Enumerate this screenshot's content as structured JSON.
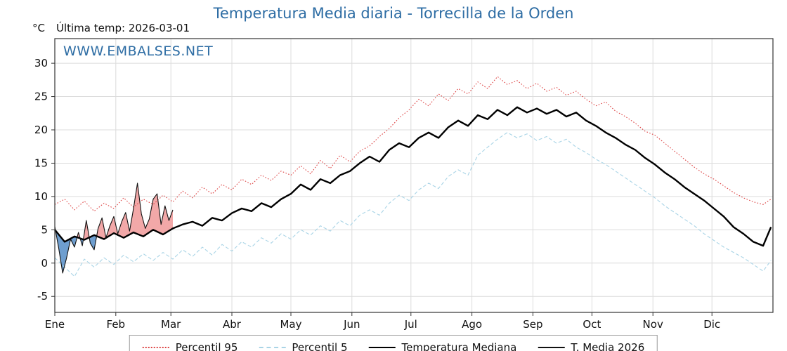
{
  "header": {
    "title": "Temperatura Media diaria - Torrecilla de la Orden",
    "unit_label": "°C",
    "last_temp_label": "Última temp: 2026-03-01",
    "watermark": "WWW.EMBALSES.NET"
  },
  "colors": {
    "title": "#2e6da4",
    "watermark": "#2e6da4",
    "grid": "#dcdcdc",
    "axis": "#333333",
    "p95": "#dd4444",
    "p5": "#a9d4e6",
    "median": "#000000",
    "t2026": "#111111",
    "fill_above": "#f2a8a8",
    "fill_below": "#6e9ecf"
  },
  "chart_data": {
    "type": "line",
    "title": "Temperatura Media diaria - Torrecilla de la Orden",
    "ylabel": "°C",
    "ylim": [
      -7.4,
      33.7
    ],
    "yticks": [
      -5,
      0,
      5,
      10,
      15,
      20,
      25,
      30
    ],
    "xlim_days": [
      0,
      365
    ],
    "grid": true,
    "legend_position": "bottom",
    "months": [
      {
        "label": "Ene",
        "day": 0
      },
      {
        "label": "Feb",
        "day": 31
      },
      {
        "label": "Mar",
        "day": 59
      },
      {
        "label": "Abr",
        "day": 90
      },
      {
        "label": "May",
        "day": 120
      },
      {
        "label": "Jun",
        "day": 151
      },
      {
        "label": "Jul",
        "day": 181
      },
      {
        "label": "Ago",
        "day": 212
      },
      {
        "label": "Sep",
        "day": 243
      },
      {
        "label": "Oct",
        "day": 273
      },
      {
        "label": "Nov",
        "day": 304
      },
      {
        "label": "Dic",
        "day": 334
      }
    ],
    "series": [
      {
        "name": "Percentil 95",
        "style": "dotted",
        "color": "#dd4444",
        "width": 1.1,
        "points": [
          [
            0,
            8.8
          ],
          [
            5,
            9.6
          ],
          [
            10,
            8.0
          ],
          [
            15,
            9.3
          ],
          [
            20,
            7.8
          ],
          [
            25,
            9.0
          ],
          [
            30,
            8.2
          ],
          [
            35,
            9.8
          ],
          [
            40,
            8.4
          ],
          [
            45,
            9.6
          ],
          [
            50,
            8.8
          ],
          [
            55,
            10.2
          ],
          [
            60,
            9.2
          ],
          [
            65,
            10.8
          ],
          [
            70,
            9.8
          ],
          [
            75,
            11.4
          ],
          [
            80,
            10.4
          ],
          [
            85,
            11.8
          ],
          [
            90,
            11.0
          ],
          [
            95,
            12.6
          ],
          [
            100,
            11.8
          ],
          [
            105,
            13.2
          ],
          [
            110,
            12.4
          ],
          [
            115,
            13.8
          ],
          [
            120,
            13.2
          ],
          [
            125,
            14.6
          ],
          [
            130,
            13.4
          ],
          [
            135,
            15.4
          ],
          [
            140,
            14.2
          ],
          [
            145,
            16.2
          ],
          [
            150,
            15.2
          ],
          [
            155,
            16.8
          ],
          [
            160,
            17.6
          ],
          [
            165,
            19.0
          ],
          [
            170,
            20.2
          ],
          [
            175,
            21.8
          ],
          [
            180,
            23.0
          ],
          [
            185,
            24.6
          ],
          [
            190,
            23.6
          ],
          [
            195,
            25.4
          ],
          [
            200,
            24.4
          ],
          [
            205,
            26.2
          ],
          [
            210,
            25.4
          ],
          [
            215,
            27.2
          ],
          [
            220,
            26.2
          ],
          [
            225,
            28.0
          ],
          [
            230,
            26.8
          ],
          [
            235,
            27.4
          ],
          [
            240,
            26.2
          ],
          [
            245,
            27.0
          ],
          [
            250,
            25.8
          ],
          [
            255,
            26.4
          ],
          [
            260,
            25.2
          ],
          [
            265,
            25.8
          ],
          [
            270,
            24.6
          ],
          [
            275,
            23.6
          ],
          [
            280,
            24.2
          ],
          [
            285,
            22.8
          ],
          [
            290,
            22.0
          ],
          [
            295,
            21.0
          ],
          [
            300,
            19.8
          ],
          [
            305,
            19.2
          ],
          [
            310,
            18.0
          ],
          [
            315,
            16.8
          ],
          [
            320,
            15.6
          ],
          [
            325,
            14.4
          ],
          [
            330,
            13.4
          ],
          [
            335,
            12.6
          ],
          [
            340,
            11.6
          ],
          [
            345,
            10.6
          ],
          [
            350,
            9.8
          ],
          [
            355,
            9.2
          ],
          [
            360,
            8.8
          ],
          [
            364,
            9.6
          ]
        ]
      },
      {
        "name": "Percentil 5",
        "style": "dashed",
        "color": "#a9d4e6",
        "width": 1.1,
        "points": [
          [
            0,
            0.8
          ],
          [
            5,
            -0.6
          ],
          [
            10,
            -2.0
          ],
          [
            15,
            0.6
          ],
          [
            20,
            -0.6
          ],
          [
            25,
            0.8
          ],
          [
            30,
            -0.2
          ],
          [
            35,
            1.2
          ],
          [
            40,
            0.2
          ],
          [
            45,
            1.4
          ],
          [
            50,
            0.4
          ],
          [
            55,
            1.6
          ],
          [
            60,
            0.6
          ],
          [
            65,
            2.0
          ],
          [
            70,
            1.0
          ],
          [
            75,
            2.4
          ],
          [
            80,
            1.2
          ],
          [
            85,
            2.8
          ],
          [
            90,
            1.8
          ],
          [
            95,
            3.2
          ],
          [
            100,
            2.4
          ],
          [
            105,
            3.8
          ],
          [
            110,
            3.0
          ],
          [
            115,
            4.4
          ],
          [
            120,
            3.6
          ],
          [
            125,
            5.0
          ],
          [
            130,
            4.2
          ],
          [
            135,
            5.6
          ],
          [
            140,
            4.8
          ],
          [
            145,
            6.4
          ],
          [
            150,
            5.6
          ],
          [
            155,
            7.2
          ],
          [
            160,
            8.0
          ],
          [
            165,
            7.2
          ],
          [
            170,
            9.0
          ],
          [
            175,
            10.2
          ],
          [
            180,
            9.4
          ],
          [
            185,
            11.0
          ],
          [
            190,
            12.0
          ],
          [
            195,
            11.2
          ],
          [
            200,
            13.0
          ],
          [
            205,
            14.0
          ],
          [
            210,
            13.2
          ],
          [
            215,
            16.2
          ],
          [
            220,
            17.4
          ],
          [
            225,
            18.6
          ],
          [
            230,
            19.6
          ],
          [
            235,
            18.8
          ],
          [
            240,
            19.4
          ],
          [
            245,
            18.4
          ],
          [
            250,
            19.0
          ],
          [
            255,
            18.0
          ],
          [
            260,
            18.6
          ],
          [
            265,
            17.4
          ],
          [
            270,
            16.6
          ],
          [
            275,
            15.6
          ],
          [
            280,
            14.8
          ],
          [
            285,
            13.8
          ],
          [
            290,
            12.8
          ],
          [
            295,
            11.8
          ],
          [
            300,
            10.8
          ],
          [
            305,
            9.8
          ],
          [
            310,
            8.6
          ],
          [
            315,
            7.6
          ],
          [
            320,
            6.6
          ],
          [
            325,
            5.6
          ],
          [
            330,
            4.4
          ],
          [
            335,
            3.4
          ],
          [
            340,
            2.4
          ],
          [
            345,
            1.6
          ],
          [
            350,
            0.8
          ],
          [
            355,
            -0.2
          ],
          [
            360,
            -1.2
          ],
          [
            364,
            0.4
          ]
        ]
      },
      {
        "name": "Temperatura Mediana",
        "style": "solid",
        "color": "#000000",
        "width": 2.4,
        "points": [
          [
            0,
            5.0
          ],
          [
            5,
            3.2
          ],
          [
            10,
            4.0
          ],
          [
            15,
            3.5
          ],
          [
            20,
            4.2
          ],
          [
            25,
            3.6
          ],
          [
            30,
            4.5
          ],
          [
            35,
            3.8
          ],
          [
            40,
            4.6
          ],
          [
            45,
            4.0
          ],
          [
            50,
            5.0
          ],
          [
            55,
            4.3
          ],
          [
            60,
            5.2
          ],
          [
            65,
            5.8
          ],
          [
            70,
            6.2
          ],
          [
            75,
            5.6
          ],
          [
            80,
            6.8
          ],
          [
            85,
            6.4
          ],
          [
            90,
            7.5
          ],
          [
            95,
            8.2
          ],
          [
            100,
            7.8
          ],
          [
            105,
            9.0
          ],
          [
            110,
            8.4
          ],
          [
            115,
            9.6
          ],
          [
            120,
            10.4
          ],
          [
            125,
            11.8
          ],
          [
            130,
            11.0
          ],
          [
            135,
            12.6
          ],
          [
            140,
            12.0
          ],
          [
            145,
            13.2
          ],
          [
            150,
            13.8
          ],
          [
            155,
            15.0
          ],
          [
            160,
            16.0
          ],
          [
            165,
            15.2
          ],
          [
            170,
            17.0
          ],
          [
            175,
            18.0
          ],
          [
            180,
            17.4
          ],
          [
            185,
            18.8
          ],
          [
            190,
            19.6
          ],
          [
            195,
            18.8
          ],
          [
            200,
            20.4
          ],
          [
            205,
            21.4
          ],
          [
            210,
            20.6
          ],
          [
            215,
            22.2
          ],
          [
            220,
            21.6
          ],
          [
            225,
            23.0
          ],
          [
            230,
            22.2
          ],
          [
            235,
            23.4
          ],
          [
            240,
            22.6
          ],
          [
            245,
            23.2
          ],
          [
            250,
            22.4
          ],
          [
            255,
            23.0
          ],
          [
            260,
            22.0
          ],
          [
            265,
            22.6
          ],
          [
            270,
            21.4
          ],
          [
            275,
            20.6
          ],
          [
            280,
            19.6
          ],
          [
            285,
            18.8
          ],
          [
            290,
            17.8
          ],
          [
            295,
            17.0
          ],
          [
            300,
            15.8
          ],
          [
            305,
            14.8
          ],
          [
            310,
            13.6
          ],
          [
            315,
            12.6
          ],
          [
            320,
            11.4
          ],
          [
            325,
            10.4
          ],
          [
            330,
            9.4
          ],
          [
            335,
            8.2
          ],
          [
            340,
            7.0
          ],
          [
            345,
            5.4
          ],
          [
            350,
            4.4
          ],
          [
            355,
            3.2
          ],
          [
            360,
            2.6
          ],
          [
            364,
            5.4
          ]
        ]
      },
      {
        "name": "T. Media 2026",
        "style": "solid",
        "color": "#111111",
        "width": 1.1,
        "fill_vs": "Temperatura Mediana",
        "fill_above": "#f2a8a8",
        "fill_below": "#6e9ecf",
        "points": [
          [
            0,
            5.5
          ],
          [
            2,
            2.2
          ],
          [
            4,
            -1.5
          ],
          [
            6,
            0.8
          ],
          [
            8,
            3.6
          ],
          [
            10,
            2.4
          ],
          [
            12,
            4.6
          ],
          [
            14,
            2.6
          ],
          [
            16,
            6.4
          ],
          [
            18,
            3.0
          ],
          [
            20,
            2.0
          ],
          [
            22,
            5.2
          ],
          [
            24,
            6.8
          ],
          [
            26,
            3.8
          ],
          [
            28,
            5.6
          ],
          [
            30,
            7.0
          ],
          [
            32,
            4.4
          ],
          [
            34,
            6.2
          ],
          [
            36,
            7.6
          ],
          [
            38,
            4.8
          ],
          [
            40,
            8.2
          ],
          [
            42,
            12.0
          ],
          [
            44,
            7.4
          ],
          [
            46,
            5.2
          ],
          [
            48,
            6.6
          ],
          [
            50,
            9.6
          ],
          [
            52,
            10.4
          ],
          [
            54,
            5.8
          ],
          [
            56,
            8.6
          ],
          [
            58,
            6.4
          ],
          [
            60,
            8.0
          ]
        ]
      }
    ],
    "legend": [
      "Percentil 95",
      "Percentil 5",
      "Temperatura Mediana",
      "T. Media 2026"
    ]
  }
}
